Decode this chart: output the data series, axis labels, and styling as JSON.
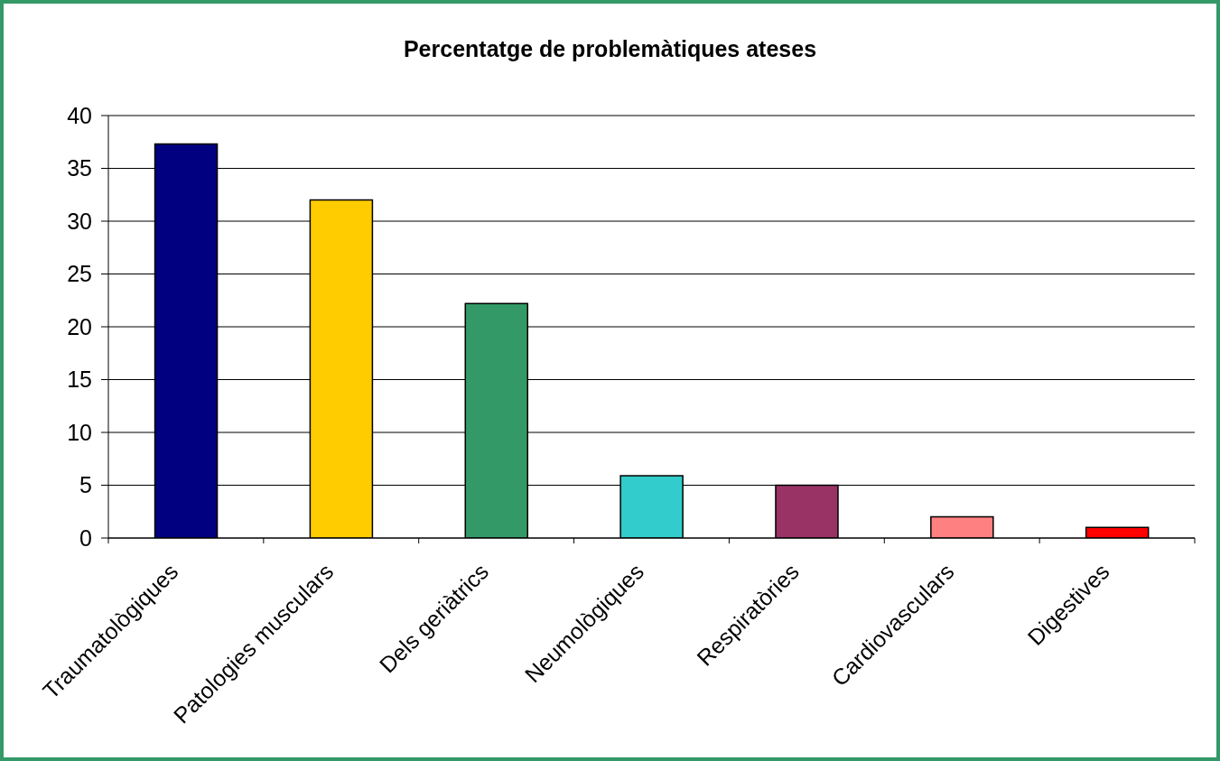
{
  "chart_data": {
    "type": "bar",
    "title": "Percentatge de problemàtiques ateses",
    "categories": [
      "Traumatològiques",
      "Patologies musculars",
      "Dels geriàtrics",
      "Neumològiques",
      "Respiratòries",
      "Cardiovasculars",
      "Digestives"
    ],
    "values": [
      37.3,
      32,
      22.2,
      5.9,
      5,
      2,
      1
    ],
    "colors": [
      "#000080",
      "#ffcc00",
      "#339966",
      "#33cccc",
      "#993366",
      "#ff8080",
      "#ff0000"
    ],
    "ylim": [
      0,
      40
    ],
    "yticks": [
      0,
      5,
      10,
      15,
      20,
      25,
      30,
      35,
      40
    ],
    "grid": "y"
  }
}
